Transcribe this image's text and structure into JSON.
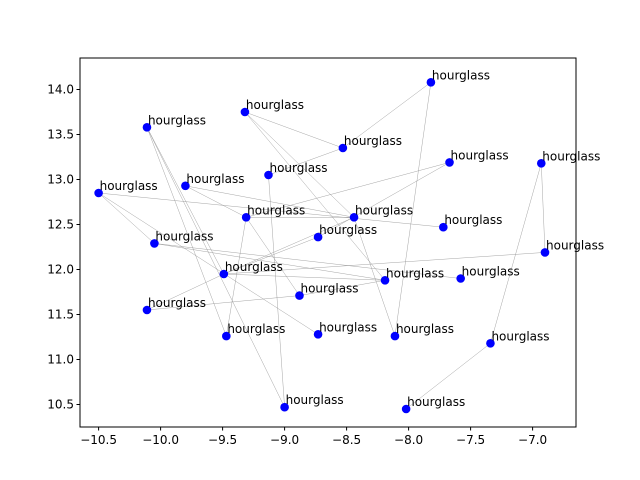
{
  "chart_data": {
    "type": "scatter",
    "title": "",
    "xlabel": "",
    "ylabel": "",
    "xlim": [
      -10.65,
      -6.65
    ],
    "ylim": [
      10.25,
      14.35
    ],
    "xticks": [
      -10.5,
      -10.0,
      -9.5,
      -9.0,
      -8.5,
      -8.0,
      -7.5,
      -7.0
    ],
    "xtick_labels": [
      "−10.5",
      "−10.0",
      "−9.5",
      "−9.0",
      "−8.5",
      "−8.0",
      "−7.5",
      "−7.0"
    ],
    "yticks": [
      10.5,
      11.0,
      11.5,
      12.0,
      12.5,
      13.0,
      13.5,
      14.0
    ],
    "ytick_labels": [
      "10.5",
      "11.0",
      "11.5",
      "12.0",
      "12.5",
      "13.0",
      "13.5",
      "14.0"
    ],
    "grid": false,
    "point_color": "#0000ff",
    "edge_color": "#888888",
    "points": [
      {
        "x": -7.82,
        "y": 14.08,
        "label": "hourglass"
      },
      {
        "x": -9.32,
        "y": 13.75,
        "label": "hourglass"
      },
      {
        "x": -10.11,
        "y": 13.58,
        "label": "hourglass"
      },
      {
        "x": -8.53,
        "y": 13.35,
        "label": "hourglass"
      },
      {
        "x": -7.67,
        "y": 13.19,
        "label": "hourglass"
      },
      {
        "x": -6.93,
        "y": 13.18,
        "label": "hourglass"
      },
      {
        "x": -9.13,
        "y": 13.05,
        "label": "hourglass"
      },
      {
        "x": -9.8,
        "y": 12.93,
        "label": "hourglass"
      },
      {
        "x": -10.5,
        "y": 12.85,
        "label": "hourglass"
      },
      {
        "x": -9.31,
        "y": 12.58,
        "label": "hourglass"
      },
      {
        "x": -8.44,
        "y": 12.58,
        "label": "hourglass"
      },
      {
        "x": -7.72,
        "y": 12.47,
        "label": "hourglass"
      },
      {
        "x": -8.73,
        "y": 12.36,
        "label": "hourglass"
      },
      {
        "x": -10.05,
        "y": 12.29,
        "label": "hourglass"
      },
      {
        "x": -6.9,
        "y": 12.19,
        "label": "hourglass"
      },
      {
        "x": -9.49,
        "y": 11.95,
        "label": "hourglass"
      },
      {
        "x": -8.19,
        "y": 11.88,
        "label": "hourglass"
      },
      {
        "x": -7.58,
        "y": 11.9,
        "label": "hourglass"
      },
      {
        "x": -8.88,
        "y": 11.71,
        "label": "hourglass"
      },
      {
        "x": -10.11,
        "y": 11.55,
        "label": "hourglass"
      },
      {
        "x": -9.47,
        "y": 11.26,
        "label": "hourglass"
      },
      {
        "x": -8.73,
        "y": 11.28,
        "label": "hourglass"
      },
      {
        "x": -8.11,
        "y": 11.26,
        "label": "hourglass"
      },
      {
        "x": -7.34,
        "y": 11.18,
        "label": "hourglass"
      },
      {
        "x": -9.0,
        "y": 10.47,
        "label": "hourglass"
      },
      {
        "x": -8.02,
        "y": 10.45,
        "label": "hourglass"
      }
    ],
    "edges": [
      [
        0,
        3
      ],
      [
        0,
        22
      ],
      [
        1,
        3
      ],
      [
        1,
        10
      ],
      [
        1,
        16
      ],
      [
        2,
        15
      ],
      [
        2,
        20
      ],
      [
        2,
        24
      ],
      [
        3,
        6
      ],
      [
        4,
        9
      ],
      [
        4,
        12
      ],
      [
        5,
        14
      ],
      [
        5,
        23
      ],
      [
        6,
        24
      ],
      [
        7,
        9
      ],
      [
        7,
        10
      ],
      [
        8,
        11
      ],
      [
        8,
        13
      ],
      [
        8,
        21
      ],
      [
        9,
        10
      ],
      [
        9,
        18
      ],
      [
        9,
        20
      ],
      [
        10,
        15
      ],
      [
        10,
        22
      ],
      [
        12,
        15
      ],
      [
        13,
        16
      ],
      [
        13,
        17
      ],
      [
        14,
        15
      ],
      [
        15,
        16
      ],
      [
        15,
        19
      ],
      [
        16,
        18
      ],
      [
        18,
        19
      ],
      [
        23,
        25
      ]
    ]
  }
}
